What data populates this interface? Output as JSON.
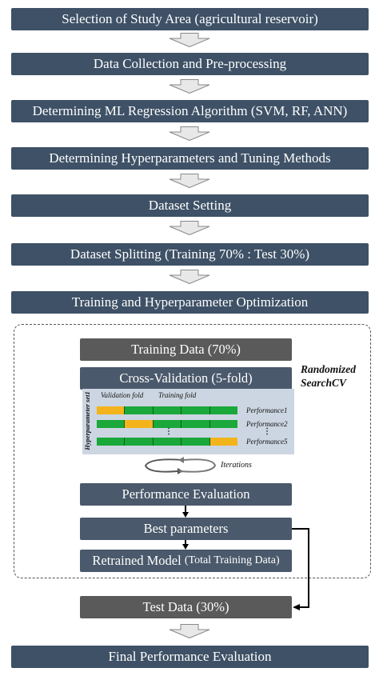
{
  "steps": [
    "Selection of Study Area (agricultural reservoir)",
    "Data Collection and Pre-processing",
    "Determining ML Regression Algorithm (SVM, RF, ANN)",
    "Determining Hyperparameters and Tuning Methods",
    "Dataset Setting",
    "Dataset Splitting (Training 70% : Test 30%)",
    "Training and Hyperparameter Optimization"
  ],
  "randomized": {
    "title_line1": "Randomized",
    "title_line2": "SearchCV",
    "training_data": "Training Data (70%)",
    "cross_validation": "Cross-Validation (5-fold)",
    "hyperparameter_label": "Hyperparameter set1",
    "validation_fold": "Validation fold",
    "training_fold": "Training fold",
    "performance": [
      "Performance1",
      "Performance2",
      "Performance5"
    ],
    "iterations": "Iterations",
    "performance_evaluation": "Performance Evaluation",
    "best_parameters": "Best parameters",
    "retrained_model": "Retrained Model",
    "retrained_model_note": "(Total Training Data)"
  },
  "test_data": "Test Data (30%)",
  "final_step": "Final Performance Evaluation",
  "colors": {
    "box": "#3e5166",
    "inner_box": "#4a596b",
    "gray_box": "#5a5a5a",
    "validation_fold": "#f3b41b",
    "training_fold": "#1aa83a",
    "cv_panel": "#ccd6e2"
  }
}
